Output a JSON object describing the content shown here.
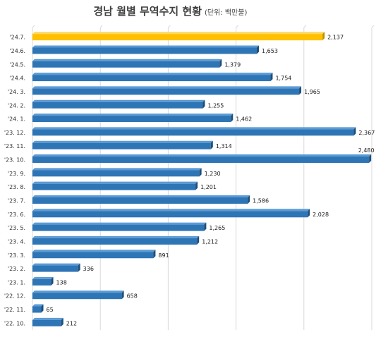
{
  "chart_data": {
    "type": "bar",
    "orientation": "horizontal",
    "title": "경남 월별 무역수지 현황",
    "unit_label": "(단위: 백만불)",
    "categories": [
      "'24.7.",
      "'24.6.",
      "'24.5.",
      "'24.4.",
      "'24. 3.",
      "'24. 2.",
      "'24. 1.",
      "'23. 12.",
      "'23. 11.",
      "'23. 10.",
      "'23. 9.",
      "'23. 8.",
      "'23. 7.",
      "'23. 6.",
      "'23. 5.",
      "'23. 4.",
      "'23. 3.",
      "'23. 2.",
      "'23. 1.",
      "'22. 12.",
      "'22. 11.",
      "'22. 10."
    ],
    "values": [
      2137,
      1653,
      1379,
      1754,
      1965,
      1255,
      1462,
      2367,
      1314,
      2480,
      1230,
      1201,
      1586,
      2028,
      1265,
      1212,
      891,
      336,
      138,
      658,
      65,
      212
    ],
    "value_labels": [
      "2,137",
      "1,653",
      "1,379",
      "1,754",
      "1,965",
      "1,255",
      "1,462",
      "2,367",
      "1,314",
      "2,480",
      "1,230",
      "1,201",
      "1,586",
      "2,028",
      "1,265",
      "1,212",
      "891",
      "336",
      "138",
      "658",
      "65",
      "212"
    ],
    "highlight_index": 0,
    "xlim": [
      0,
      2500
    ],
    "grid": true,
    "colors": {
      "bar": "#2e75b6",
      "bar_dark": "#1f4e79",
      "bar_top": "#5b9bd5",
      "highlight": "#ffc000",
      "highlight_dark": "#bf9000",
      "highlight_top": "#ffd966"
    }
  }
}
